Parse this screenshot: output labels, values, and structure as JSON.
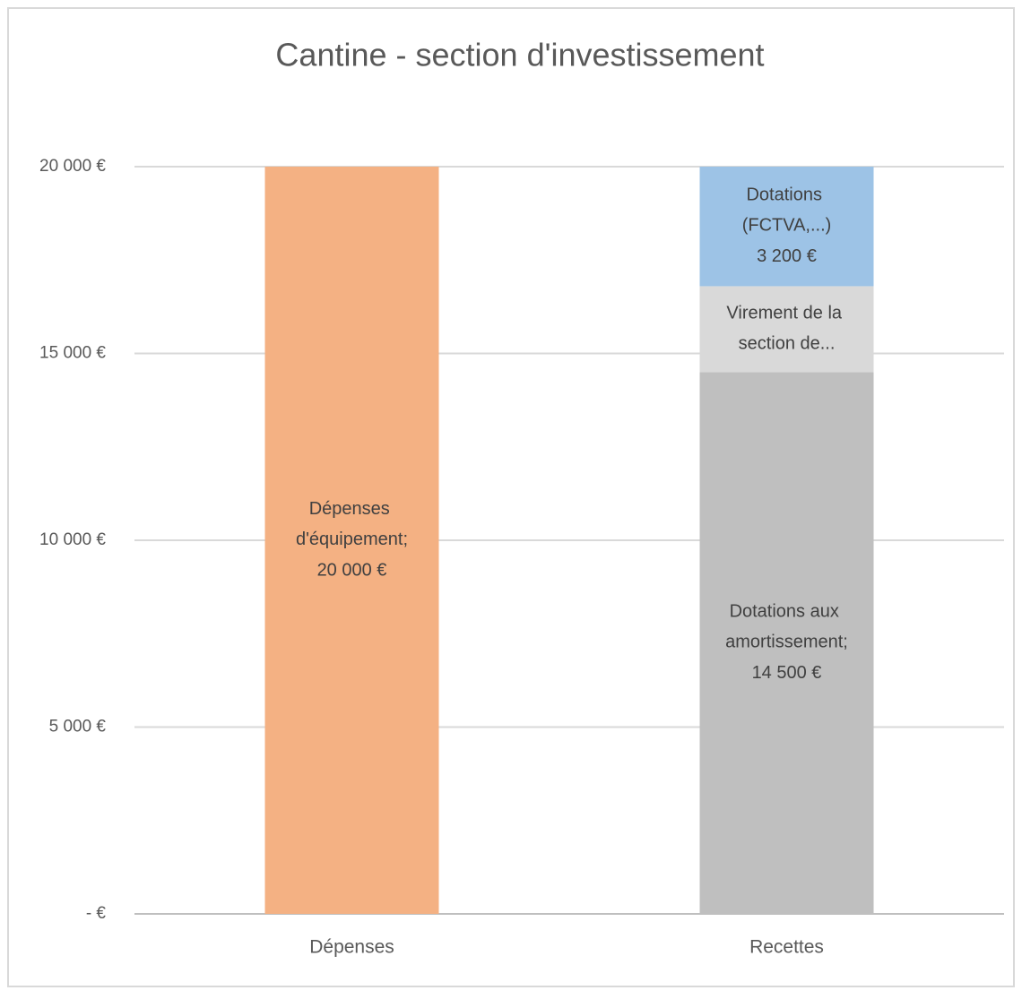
{
  "chart_data": {
    "type": "stacked_bar",
    "title": "Cantine - section d'investissement",
    "categories": [
      "Dépenses",
      "Recettes"
    ],
    "series": [
      {
        "name": "Dépenses d'équipement;",
        "color": "#f4b183",
        "values": [
          20000,
          null
        ],
        "value_labels": [
          "20 000 €",
          null
        ]
      },
      {
        "name": "Dotations aux amortissement;",
        "color": "#bfbfbf",
        "values": [
          null,
          14500
        ],
        "value_labels": [
          null,
          "14 500 €"
        ]
      },
      {
        "name": "Virement de la section de...",
        "color": "#d9d9d9",
        "values": [
          null,
          2300
        ],
        "value_labels": [
          null,
          null
        ]
      },
      {
        "name": "Dotations (FCTVA,...)",
        "color": "#9dc3e6",
        "values": [
          null,
          3200
        ],
        "value_labels": [
          null,
          "3 200 €"
        ]
      }
    ],
    "ylim": [
      0,
      20000
    ],
    "yticks": [
      {
        "value": 0,
        "label": "- €"
      },
      {
        "value": 5000,
        "label": "5 000 €"
      },
      {
        "value": 10000,
        "label": "10 000 €"
      },
      {
        "value": 15000,
        "label": "15 000 €"
      },
      {
        "value": 20000,
        "label": "20 000 €"
      }
    ],
    "grid": true
  }
}
